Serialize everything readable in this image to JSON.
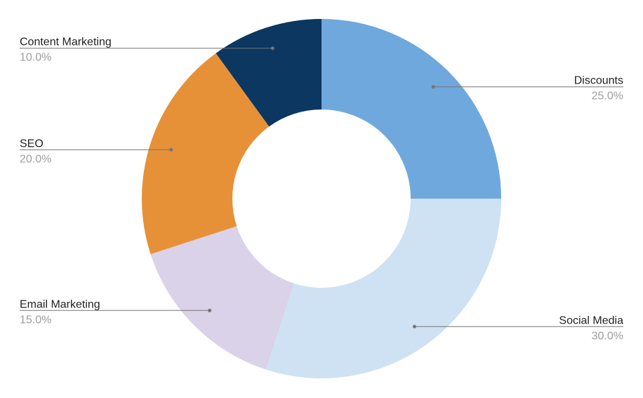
{
  "chart_data": {
    "type": "pie",
    "variant": "donut",
    "categories": [
      "Discounts",
      "Social Media",
      "Email Marketing",
      "SEO",
      "Content Marketing"
    ],
    "values": [
      25.0,
      30.0,
      15.0,
      20.0,
      10.0
    ],
    "value_labels": [
      "25.0%",
      "30.0%",
      "15.0%",
      "20.0%",
      "10.0%"
    ],
    "colors": [
      "#6fa8dc",
      "#cfe2f3",
      "#d9d2e9",
      "#e69138",
      "#0b3761"
    ],
    "start": "12 o'clock",
    "direction": "clockwise",
    "legend": "none",
    "label_sides": [
      "right",
      "right",
      "left",
      "left",
      "left"
    ]
  }
}
